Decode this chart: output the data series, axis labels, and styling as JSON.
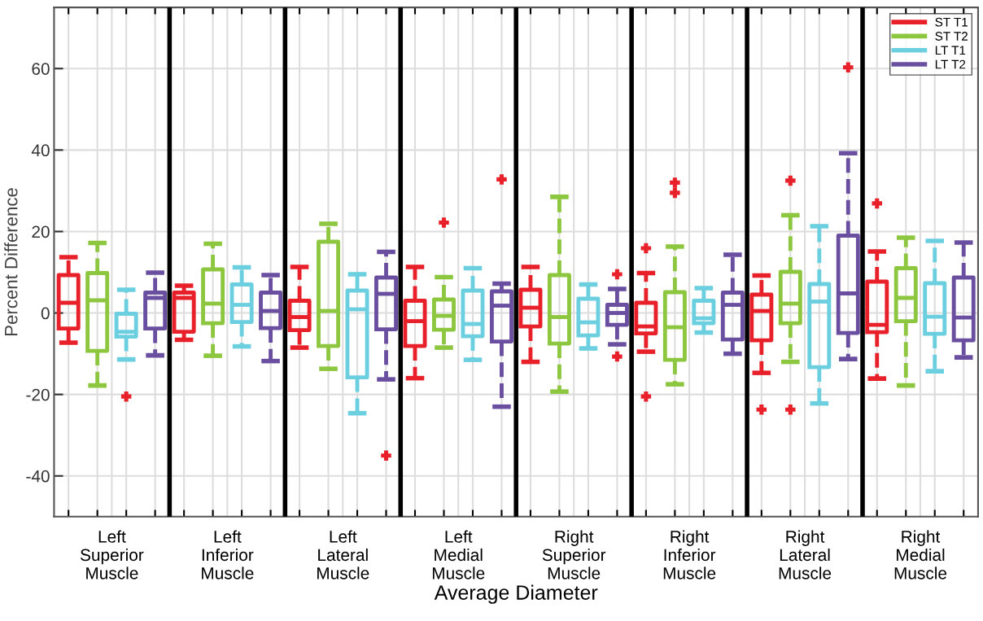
{
  "chart_data": {
    "type": "box",
    "xlabel": "Average Diameter",
    "ylabel": "Percent Difference",
    "categories": [
      "Left\nSuperior\nMuscle",
      "Left\nInferior\nMuscle",
      "Left\nLateral\nMuscle",
      "Left\nMedial\nMuscle",
      "Right\nSuperior\nMuscle",
      "Right\nInferior\nMuscle",
      "Right\nLateral\nMuscle",
      "Right\nMedial\nMuscle"
    ],
    "ylim": [
      -50,
      75
    ],
    "yticks": [
      -40,
      -20,
      0,
      20,
      40,
      60
    ],
    "grid": true,
    "legend": "top right",
    "line_style": "dashed",
    "series": [
      {
        "name": "ST T1",
        "color": "#e8202a",
        "boxes": [
          {
            "low": -7.3,
            "q1": -3.8,
            "median": 2.5,
            "q3": 9.3,
            "high": 13.7
          },
          {
            "low": -6.6,
            "q1": -4.6,
            "median": 3.7,
            "q3": 5,
            "high": 6.7
          },
          {
            "low": -8.5,
            "q1": -4.2,
            "median": -1,
            "q3": 3,
            "high": 11.3
          },
          {
            "low": -16,
            "q1": -8.1,
            "median": -2,
            "q3": 3,
            "high": 11.3
          },
          {
            "low": -12,
            "q1": -3.3,
            "median": 1.3,
            "q3": 5.7,
            "high": 11.3
          },
          {
            "low": -9.5,
            "q1": -5,
            "median": -3.3,
            "q3": 2.5,
            "high": 9.8,
            "outliers": [
              15.9,
              -20.5
            ]
          },
          {
            "low": -14.7,
            "q1": -6.7,
            "median": 0.5,
            "q3": 4.5,
            "high": 9.2,
            "outliers": [
              -23.7
            ]
          },
          {
            "low": -16.1,
            "q1": -4.7,
            "median": -2.9,
            "q3": 7.7,
            "high": 15.1,
            "outliers": [
              26.9
            ]
          }
        ]
      },
      {
        "name": "ST T2",
        "color": "#8dc63f",
        "boxes": [
          {
            "low": -17.8,
            "q1": -9.3,
            "median": 3.1,
            "q3": 9.8,
            "high": 17.2
          },
          {
            "low": -10.5,
            "q1": -2.5,
            "median": 2.3,
            "q3": 10.7,
            "high": 17
          },
          {
            "low": -13.7,
            "q1": -8.1,
            "median": 0.5,
            "q3": 17.5,
            "high": 21.9
          },
          {
            "low": -8.5,
            "q1": -4.1,
            "median": -0.7,
            "q3": 3.3,
            "high": 8.8,
            "outliers": [
              22.2
            ]
          },
          {
            "low": -19.3,
            "q1": -7.5,
            "median": -1,
            "q3": 9.3,
            "high": 28.5
          },
          {
            "low": -17.5,
            "q1": -11.5,
            "median": -3.5,
            "q3": 5.1,
            "high": 16.3,
            "outliers": [
              32,
              29.5
            ]
          },
          {
            "low": -12,
            "q1": -2.5,
            "median": 2.3,
            "q3": 10.1,
            "high": 24,
            "outliers": [
              32.5,
              -23.7
            ]
          },
          {
            "low": -17.8,
            "q1": -2,
            "median": 3.7,
            "q3": 11,
            "high": 18.5
          }
        ]
      },
      {
        "name": "LT T1",
        "color": "#6ccfe0",
        "boxes": [
          {
            "low": -11.4,
            "q1": -5.8,
            "median": -4.6,
            "q3": -0.2,
            "high": 5.7,
            "outliers": [
              -20.5
            ]
          },
          {
            "low": -8.2,
            "q1": -2.2,
            "median": 2,
            "q3": 7,
            "high": 11.2
          },
          {
            "low": -24.6,
            "q1": -15.8,
            "median": 0.9,
            "q3": 5.5,
            "high": 9.5
          },
          {
            "low": -11.5,
            "q1": -5.7,
            "median": -2.7,
            "q3": 5.5,
            "high": 11
          },
          {
            "low": -8.7,
            "q1": -5.5,
            "median": -2.3,
            "q3": 3.5,
            "high": 7
          },
          {
            "low": -4.8,
            "q1": -2.5,
            "median": -1.3,
            "q3": 3,
            "high": 6.1
          },
          {
            "low": -22.2,
            "q1": -13.3,
            "median": 2.8,
            "q3": 7.1,
            "high": 21.3
          },
          {
            "low": -14.3,
            "q1": -5.1,
            "median": -0.9,
            "q3": 7.3,
            "high": 17.7
          }
        ]
      },
      {
        "name": "LT T2",
        "color": "#6a4fa0",
        "boxes": [
          {
            "low": -10.4,
            "q1": -3.8,
            "median": 3.7,
            "q3": 5,
            "high": 9.9
          },
          {
            "low": -11.8,
            "q1": -3.7,
            "median": 0.5,
            "q3": 5,
            "high": 9.3
          },
          {
            "low": -16.3,
            "q1": -4,
            "median": 4.7,
            "q3": 8.7,
            "high": 15,
            "outliers": [
              -35
            ]
          },
          {
            "low": -23,
            "q1": -7,
            "median": 1.8,
            "q3": 5.3,
            "high": 7.2,
            "outliers": [
              32.8
            ]
          },
          {
            "low": -7.7,
            "q1": -2.9,
            "median": 0,
            "q3": 2,
            "high": 5.9,
            "outliers": [
              9.5,
              -10.7
            ]
          },
          {
            "low": -10,
            "q1": -6.5,
            "median": 2,
            "q3": 5,
            "high": 14.3
          },
          {
            "low": -11.3,
            "q1": -4.9,
            "median": 4.8,
            "q3": 19,
            "high": 39.2,
            "outliers": [
              60.3
            ]
          },
          {
            "low": -10.9,
            "q1": -6.7,
            "median": -1.1,
            "q3": 8.7,
            "high": 17.3
          }
        ]
      }
    ]
  }
}
